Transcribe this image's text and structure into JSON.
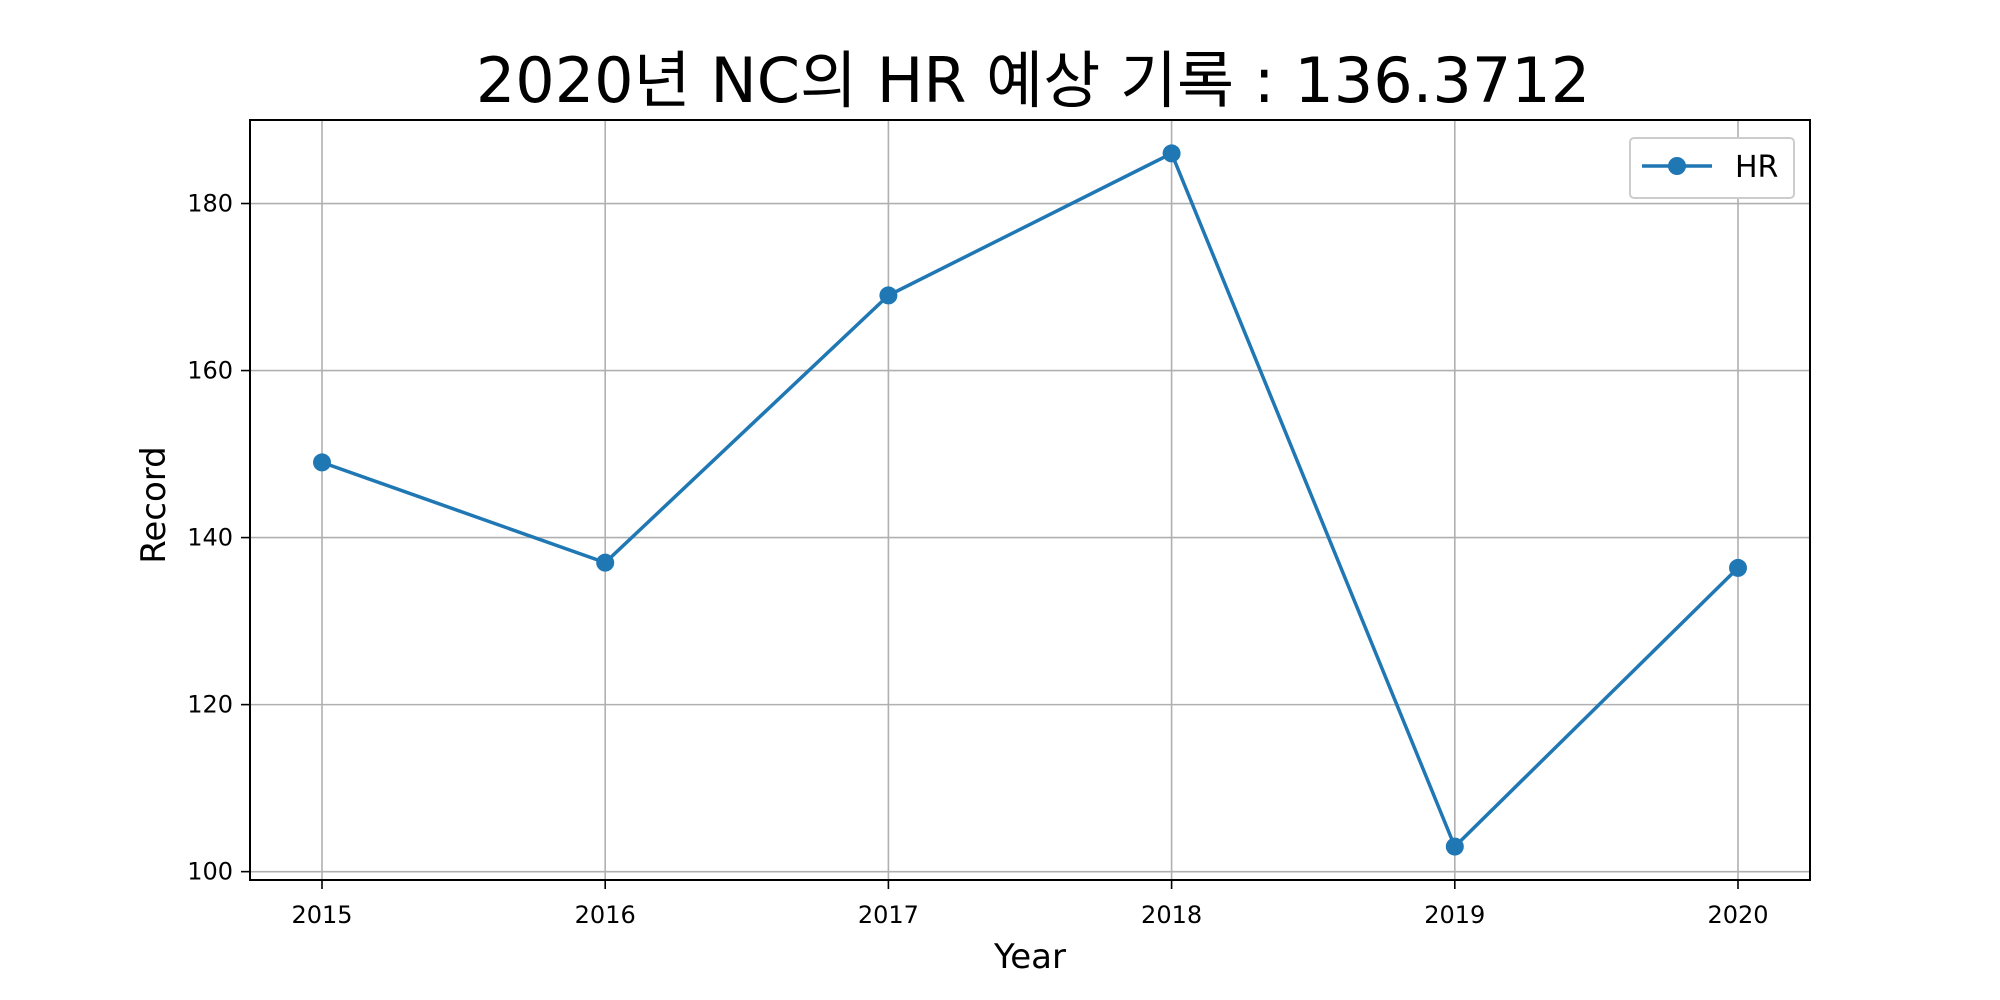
{
  "chart_data": {
    "type": "line",
    "title": "2020년 NC의 HR 예상 기록 : 136.3712",
    "xlabel": "Year",
    "ylabel": "Record",
    "x": [
      "2015",
      "2016",
      "2017",
      "2018",
      "2019",
      "2020"
    ],
    "series": [
      {
        "name": "HR",
        "values": [
          149,
          137,
          169,
          186,
          103,
          136.3712
        ],
        "color": "#1f77b4",
        "marker": "circle"
      }
    ],
    "ylim": [
      99,
      190
    ],
    "yticks": [
      100,
      120,
      140,
      160,
      180
    ],
    "grid": true,
    "legend_position": "top-right"
  }
}
